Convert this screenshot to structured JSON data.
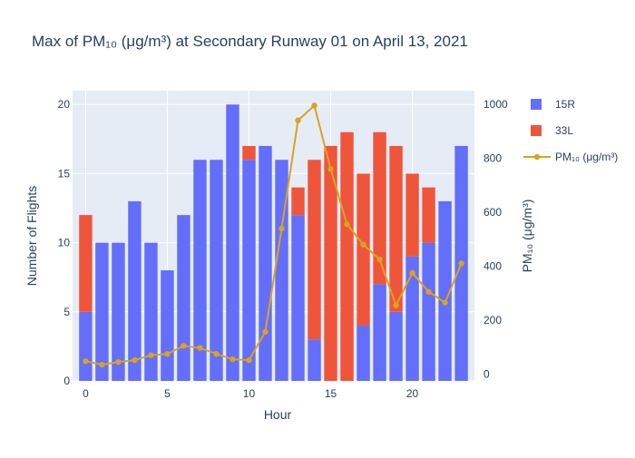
{
  "chart_data": {
    "type": "bar",
    "title": "Max of PM₁₀ (μg/m³) at Secondary Runway 01 on April 13, 2021",
    "xlabel": "Hour",
    "ylabel": "Number of Flights",
    "y2label": "PM₁₀ (μg/m³)",
    "barmode": "stack",
    "x": [
      0,
      1,
      2,
      3,
      4,
      5,
      6,
      7,
      8,
      9,
      10,
      11,
      12,
      13,
      14,
      15,
      16,
      17,
      18,
      19,
      20,
      21,
      22,
      23
    ],
    "x_ticks": [
      0,
      5,
      10,
      15,
      20
    ],
    "x_range": [
      -0.8,
      23.8
    ],
    "ylim": [
      0,
      21
    ],
    "y_ticks": [
      0,
      5,
      10,
      15,
      20
    ],
    "y2lim": [
      -25,
      1050
    ],
    "y2_ticks": [
      0,
      200,
      400,
      600,
      800,
      1000
    ],
    "series": [
      {
        "name": "15R",
        "kind": "bar",
        "color": "#636efa",
        "values": [
          5,
          10,
          10,
          13,
          10,
          8,
          12,
          16,
          16,
          20,
          16,
          17,
          16,
          12,
          3,
          0,
          0,
          4,
          7,
          5,
          9,
          10,
          13,
          17
        ]
      },
      {
        "name": "33L",
        "kind": "bar",
        "color": "#ef553b",
        "values": [
          7,
          0,
          0,
          0,
          0,
          0,
          0,
          0,
          0,
          0,
          1,
          0,
          0,
          2,
          13,
          17,
          18,
          11,
          11,
          12,
          6,
          4,
          0,
          0
        ]
      },
      {
        "name": "PM₁₀ (μg/m³)",
        "kind": "line",
        "axis": "y2",
        "color": "#dba21e",
        "values": [
          48,
          35,
          45,
          52,
          70,
          75,
          105,
          97,
          75,
          55,
          52,
          157,
          540,
          940,
          995,
          760,
          555,
          480,
          425,
          255,
          375,
          305,
          265,
          410
        ]
      }
    ],
    "legend": {
      "position": "right",
      "items": [
        "15R",
        "33L",
        "PM₁₀ (μg/m³)"
      ]
    },
    "grid": true
  }
}
